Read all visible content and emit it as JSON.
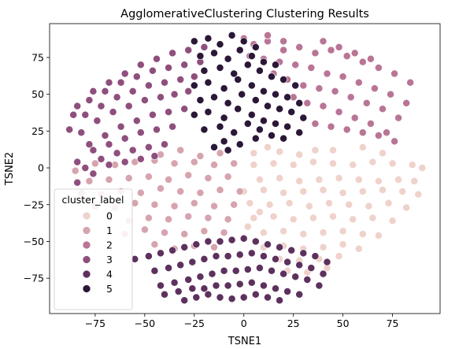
{
  "chart_data": {
    "type": "scatter",
    "title": "AgglomerativeClustering Clustering Results",
    "xlabel": "TSNE1",
    "ylabel": "TSNE2",
    "xlim": [
      -98,
      99
    ],
    "ylim": [
      -99,
      98
    ],
    "xticks": [
      -75,
      -50,
      -25,
      0,
      25,
      50,
      75
    ],
    "yticks": [
      -75,
      -50,
      -25,
      0,
      25,
      50,
      75
    ],
    "grid": false,
    "legend": {
      "title": "cluster_label",
      "placement": "lower-left",
      "entries": [
        "0",
        "1",
        "2",
        "3",
        "4",
        "5"
      ]
    },
    "colors": [
      "#efd2cb",
      "#d6a4ae",
      "#b97596",
      "#8f4f7d",
      "#5d315d",
      "#2b1737"
    ],
    "series": [
      {
        "name": "0",
        "x": [
          5,
          15,
          25,
          35,
          45,
          55,
          65,
          75,
          85,
          90,
          8,
          18,
          28,
          38,
          48,
          58,
          68,
          78,
          86,
          0,
          10,
          20,
          30,
          40,
          50,
          60,
          70,
          80,
          88,
          3,
          13,
          23,
          33,
          43,
          53,
          63,
          73,
          82,
          5,
          15,
          25,
          35,
          45,
          55,
          65,
          75,
          10,
          20,
          30,
          40,
          50,
          60,
          68,
          10,
          20,
          30,
          40,
          50,
          58,
          18,
          28,
          38,
          48,
          22,
          32,
          42,
          5,
          12,
          18,
          28,
          36,
          2,
          8,
          45,
          60,
          70
        ],
        "y": [
          2,
          3,
          2,
          4,
          3,
          2,
          4,
          3,
          2,
          0,
          -8,
          -7,
          -9,
          -8,
          -7,
          -8,
          -9,
          -8,
          -9,
          -16,
          -15,
          -17,
          -16,
          -15,
          -17,
          -16,
          -15,
          -16,
          -18,
          -24,
          -25,
          -24,
          -26,
          -24,
          -25,
          -26,
          -24,
          -27,
          -34,
          -33,
          -35,
          -34,
          -33,
          -35,
          -34,
          -36,
          -44,
          -43,
          -45,
          -44,
          -43,
          -45,
          -46,
          -54,
          -53,
          -55,
          -54,
          -52,
          -55,
          -62,
          -63,
          -62,
          -60,
          -70,
          -71,
          -68,
          10,
          14,
          11,
          9,
          12,
          -40,
          -30,
          12,
          14,
          10
        ]
      },
      {
        "name": "1",
        "x": [
          -5,
          -15,
          -25,
          -35,
          -45,
          -55,
          -65,
          -75,
          -85,
          -8,
          -18,
          -28,
          -38,
          -48,
          -58,
          -68,
          -78,
          -2,
          -12,
          -22,
          -32,
          -42,
          -52,
          -62,
          -72,
          -82,
          -5,
          -15,
          -25,
          -35,
          -45,
          -55,
          -65,
          -75,
          -8,
          -18,
          -28,
          -38,
          -48,
          -58,
          -68,
          -10,
          -20,
          -30,
          -40,
          -50,
          -60,
          -15,
          -25,
          -35,
          -45,
          -12,
          -22,
          -32,
          -42
        ],
        "y": [
          3,
          2,
          4,
          3,
          5,
          4,
          2,
          3,
          -2,
          -6,
          -7,
          -5,
          -8,
          -6,
          -7,
          -8,
          -9,
          -16,
          -15,
          -17,
          -16,
          -14,
          -17,
          -16,
          -18,
          -17,
          -25,
          -26,
          -24,
          -26,
          -25,
          -24,
          -27,
          -26,
          -35,
          -34,
          -33,
          -35,
          -34,
          -36,
          -33,
          -44,
          -43,
          -45,
          -44,
          -42,
          -45,
          -54,
          -53,
          -55,
          -52,
          10,
          8,
          12,
          9
        ]
      },
      {
        "name": "2",
        "x": [
          0,
          5,
          12,
          20,
          28,
          36,
          44,
          52,
          60,
          68,
          76,
          84,
          3,
          10,
          18,
          26,
          34,
          42,
          50,
          58,
          66,
          74,
          82,
          8,
          15,
          22,
          30,
          38,
          46,
          54,
          62,
          70,
          78,
          25,
          32,
          40,
          48,
          56,
          64,
          72,
          36,
          44,
          52,
          60,
          68,
          76,
          12,
          20,
          28,
          40,
          48,
          56,
          64
        ],
        "y": [
          88,
          84,
          86,
          80,
          82,
          78,
          80,
          76,
          72,
          68,
          64,
          58,
          76,
          74,
          72,
          70,
          68,
          64,
          62,
          58,
          54,
          50,
          44,
          66,
          64,
          60,
          56,
          54,
          52,
          48,
          44,
          40,
          34,
          48,
          44,
          42,
          38,
          34,
          30,
          24,
          30,
          28,
          26,
          24,
          22,
          18,
          90,
          86,
          82,
          86,
          82,
          78,
          74
        ]
      },
      {
        "name": "3",
        "x": [
          -20,
          -28,
          -36,
          -44,
          -52,
          -60,
          -68,
          -76,
          -84,
          -22,
          -30,
          -38,
          -46,
          -54,
          -62,
          -70,
          -78,
          -86,
          -25,
          -32,
          -40,
          -48,
          -56,
          -64,
          -72,
          -80,
          -88,
          -28,
          -35,
          -42,
          -50,
          -58,
          -66,
          -74,
          -82,
          -30,
          -38,
          -46,
          -54,
          -62,
          -70,
          -78,
          -36,
          -44,
          -52,
          -60,
          -68,
          -76,
          -84,
          -40,
          -48,
          -56,
          -64,
          -72,
          -80,
          -45,
          -52,
          -60,
          -68,
          -76,
          -84
        ],
        "y": [
          82,
          80,
          78,
          74,
          70,
          64,
          58,
          52,
          42,
          72,
          70,
          68,
          66,
          62,
          58,
          52,
          46,
          36,
          62,
          60,
          58,
          56,
          52,
          48,
          42,
          36,
          26,
          52,
          50,
          48,
          46,
          42,
          38,
          32,
          24,
          40,
          38,
          36,
          32,
          28,
          22,
          16,
          28,
          26,
          24,
          20,
          16,
          12,
          4,
          16,
          14,
          12,
          10,
          6,
          0,
          8,
          6,
          4,
          2,
          -4,
          -10
        ]
      },
      {
        "name": "4",
        "x": [
          -55,
          -48,
          -42,
          -36,
          -30,
          -24,
          -18,
          -12,
          -6,
          0,
          6,
          12,
          18,
          24,
          30,
          36,
          42,
          -45,
          -38,
          -32,
          -26,
          -20,
          -14,
          -8,
          -2,
          4,
          10,
          16,
          22,
          28,
          34,
          40,
          -42,
          -35,
          -28,
          -22,
          -16,
          -10,
          -4,
          2,
          8,
          14,
          20,
          26,
          32,
          38,
          -40,
          -33,
          -26,
          -20,
          -14,
          -8,
          -2,
          4,
          10,
          16,
          22,
          28,
          -30,
          -24,
          -18,
          -12,
          -6,
          0,
          6,
          12,
          18
        ],
        "y": [
          -62,
          -60,
          -58,
          -56,
          -54,
          -52,
          -50,
          -50,
          -49,
          -48,
          -50,
          -52,
          -54,
          -56,
          -58,
          -60,
          -64,
          -70,
          -68,
          -66,
          -64,
          -62,
          -60,
          -60,
          -59,
          -58,
          -60,
          -62,
          -64,
          -66,
          -68,
          -72,
          -80,
          -78,
          -76,
          -74,
          -72,
          -70,
          -70,
          -69,
          -68,
          -70,
          -72,
          -74,
          -76,
          -80,
          -86,
          -84,
          -82,
          -82,
          -80,
          -80,
          -79,
          -78,
          -80,
          -82,
          -84,
          -86,
          -90,
          -88,
          -86,
          -88,
          -89,
          -88,
          -86,
          -88,
          -90
        ]
      },
      {
        "name": "5",
        "x": [
          -25,
          -18,
          -12,
          -6,
          0,
          6,
          -22,
          -15,
          -8,
          -2,
          4,
          10,
          16,
          -20,
          -12,
          -5,
          2,
          8,
          14,
          20,
          26,
          -25,
          -18,
          -10,
          -3,
          4,
          10,
          16,
          22,
          28,
          -22,
          -15,
          -8,
          -1,
          6,
          12,
          18,
          24,
          30,
          -25,
          -18,
          -10,
          -3,
          4,
          10,
          16,
          22,
          28,
          -20,
          -12,
          -5,
          2,
          8,
          14,
          20,
          -10,
          -2,
          6,
          -15,
          -8
        ],
        "y": [
          86,
          88,
          84,
          90,
          86,
          82,
          76,
          78,
          74,
          80,
          76,
          72,
          70,
          66,
          68,
          64,
          70,
          66,
          62,
          60,
          56,
          56,
          58,
          54,
          60,
          56,
          52,
          50,
          48,
          44,
          46,
          48,
          44,
          50,
          46,
          42,
          40,
          38,
          34,
          36,
          38,
          34,
          40,
          36,
          32,
          30,
          28,
          24,
          26,
          28,
          24,
          30,
          26,
          22,
          20,
          18,
          16,
          20,
          14,
          12
        ]
      }
    ]
  }
}
